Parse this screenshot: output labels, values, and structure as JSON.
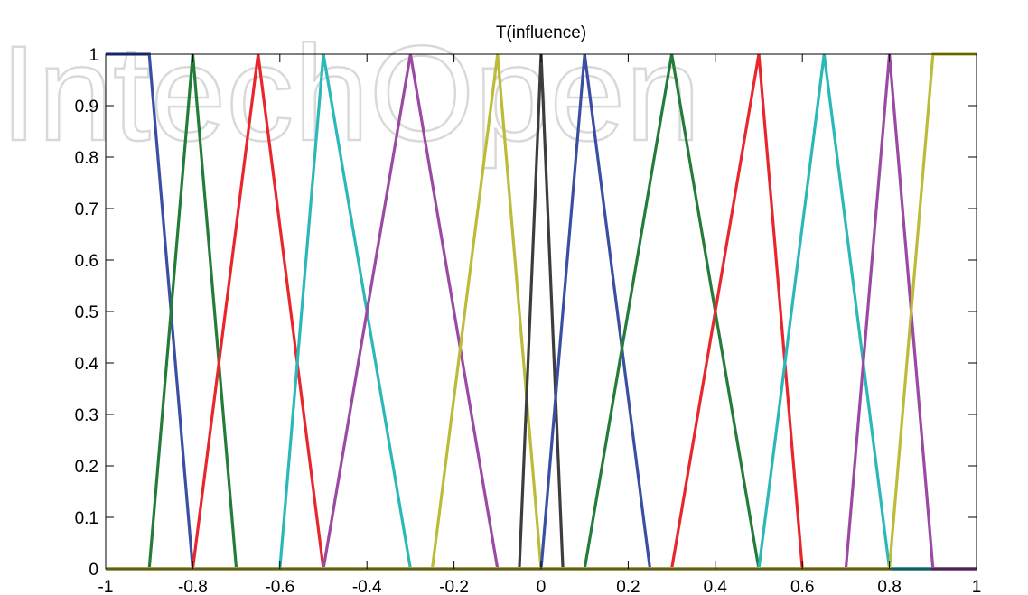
{
  "watermark": "IntechOpen",
  "chart_data": {
    "type": "line",
    "title": "T(influence)",
    "xlabel": "",
    "ylabel": "",
    "xlim": [
      -1,
      1
    ],
    "ylim": [
      0,
      1
    ],
    "grid": false,
    "legend": "none",
    "xticks": [
      "-1",
      "-0.8",
      "-0.6",
      "-0.4",
      "-0.2",
      "0",
      "0.2",
      "0.4",
      "0.6",
      "0.8",
      "1"
    ],
    "yticks": [
      "0",
      "0.1",
      "0.2",
      "0.3",
      "0.4",
      "0.5",
      "0.6",
      "0.7",
      "0.8",
      "0.9",
      "1"
    ],
    "series": [
      {
        "color": "#3a4fa3",
        "x": [
          -1,
          -0.9,
          -0.8,
          1
        ],
        "y": [
          1,
          1,
          0,
          0
        ]
      },
      {
        "color": "#247c3a",
        "x": [
          -1,
          -0.9,
          -0.8,
          -0.7,
          1
        ],
        "y": [
          0,
          0,
          1,
          0,
          0
        ]
      },
      {
        "color": "#e8262b",
        "x": [
          -1,
          -0.8,
          -0.65,
          -0.5,
          1
        ],
        "y": [
          0,
          0,
          1,
          0,
          0
        ]
      },
      {
        "color": "#2bb8b8",
        "x": [
          -1,
          -0.6,
          -0.5,
          -0.3,
          1
        ],
        "y": [
          0,
          0,
          1,
          0,
          0
        ]
      },
      {
        "color": "#9a4aa3",
        "x": [
          -1,
          -0.5,
          -0.3,
          -0.1,
          1
        ],
        "y": [
          0,
          0,
          1,
          0,
          0
        ]
      },
      {
        "color": "#bcbc3a",
        "x": [
          -1,
          -0.25,
          -0.1,
          0,
          1
        ],
        "y": [
          0,
          0,
          1,
          0,
          0
        ]
      },
      {
        "color": "#3d3d3d",
        "x": [
          -1,
          -0.05,
          0,
          0.05,
          1
        ],
        "y": [
          0,
          0,
          1,
          0,
          0
        ]
      },
      {
        "color": "#3a4fa3",
        "x": [
          -1,
          0,
          0.1,
          0.25,
          1
        ],
        "y": [
          0,
          0,
          1,
          0,
          0
        ]
      },
      {
        "color": "#247c3a",
        "x": [
          -1,
          0.1,
          0.3,
          0.5,
          1
        ],
        "y": [
          0,
          0,
          1,
          0,
          0
        ]
      },
      {
        "color": "#e8262b",
        "x": [
          -1,
          0.3,
          0.5,
          0.6,
          1
        ],
        "y": [
          0,
          0,
          1,
          0,
          0
        ]
      },
      {
        "color": "#2bb8b8",
        "x": [
          -1,
          0.5,
          0.65,
          0.8,
          1
        ],
        "y": [
          0,
          0,
          1,
          0,
          0
        ]
      },
      {
        "color": "#9a4aa3",
        "x": [
          -1,
          0.7,
          0.8,
          0.9,
          1
        ],
        "y": [
          0,
          0,
          1,
          0,
          0
        ]
      },
      {
        "color": "#bcbc3a",
        "x": [
          -1,
          0.8,
          0.9,
          1
        ],
        "y": [
          0,
          0,
          1,
          1
        ]
      }
    ]
  }
}
